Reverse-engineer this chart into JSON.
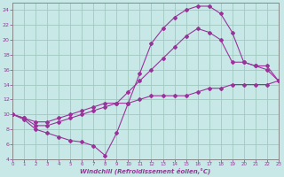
{
  "xlabel": "Windchill (Refroidissement éolien,°C)",
  "bg_color": "#c8e8e8",
  "grid_color": "#a0c8c0",
  "line_color": "#993399",
  "spine_color": "#888888",
  "xlim": [
    0,
    23
  ],
  "ylim": [
    4,
    25
  ],
  "xticks": [
    0,
    1,
    2,
    3,
    4,
    5,
    6,
    7,
    8,
    9,
    10,
    11,
    12,
    13,
    14,
    15,
    16,
    17,
    18,
    19,
    20,
    21,
    22,
    23
  ],
  "yticks": [
    4,
    6,
    8,
    10,
    12,
    14,
    16,
    18,
    20,
    22,
    24
  ],
  "lines": [
    {
      "x": [
        0,
        1,
        2,
        3,
        4,
        5,
        6,
        7,
        8,
        9,
        10,
        11,
        12,
        13,
        14,
        15,
        16,
        17,
        18,
        19,
        20,
        21,
        22,
        23
      ],
      "y": [
        10,
        9.3,
        8.0,
        7.5,
        7.0,
        6.5,
        6.3,
        5.8,
        4.5,
        7.5,
        11.5,
        15.5,
        19.5,
        21.5,
        23.0,
        24.0,
        24.5,
        24.5,
        23.5,
        21.0,
        17.0,
        16.5,
        16.0,
        14.5
      ]
    },
    {
      "x": [
        0,
        1,
        2,
        3,
        4,
        5,
        6,
        7,
        8,
        9,
        10,
        11,
        12,
        13,
        14,
        15,
        16,
        17,
        18,
        19,
        20,
        21,
        22,
        23
      ],
      "y": [
        10,
        9.5,
        8.5,
        8.5,
        9.0,
        9.5,
        10.0,
        10.5,
        11.0,
        11.5,
        13.0,
        14.5,
        16.0,
        17.5,
        19.0,
        20.5,
        21.5,
        21.0,
        20.0,
        17.0,
        17.0,
        16.5,
        16.5,
        14.5
      ]
    },
    {
      "x": [
        0,
        1,
        2,
        3,
        4,
        5,
        6,
        7,
        8,
        9,
        10,
        11,
        12,
        13,
        14,
        15,
        16,
        17,
        18,
        19,
        20,
        21,
        22,
        23
      ],
      "y": [
        10,
        9.5,
        9.0,
        9.0,
        9.5,
        10.0,
        10.5,
        11.0,
        11.5,
        11.5,
        11.5,
        12.0,
        12.5,
        12.5,
        12.5,
        12.5,
        13.0,
        13.5,
        13.5,
        14.0,
        14.0,
        14.0,
        14.0,
        14.5
      ]
    }
  ]
}
